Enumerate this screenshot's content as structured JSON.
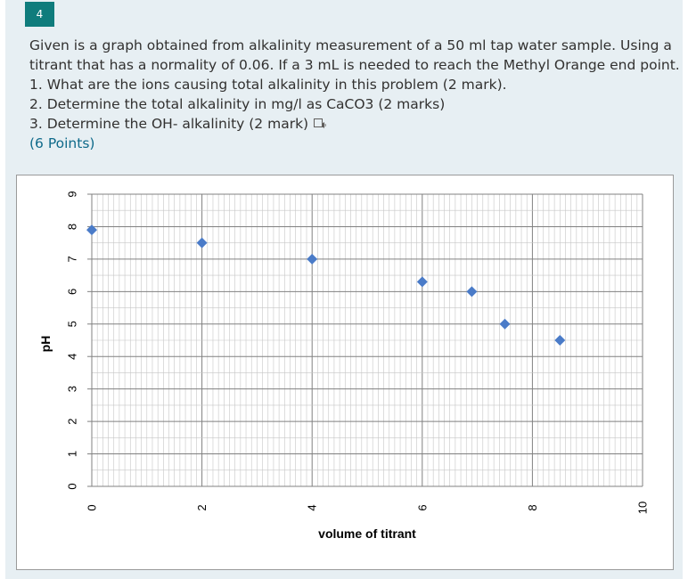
{
  "question": {
    "number": "4",
    "lines": [
      "Given is a graph obtained from alkalinity measurement of a 50 ml tap water sample. Using a",
      "titrant that has a normality of 0.06. If a 3 mL is needed to reach the Methyl Orange end point.",
      "1. What are the ions causing total alkalinity in this problem (2 mark).",
      "2. Determine the total alkalinity in mg/l as CaCO3 (2 marks)",
      "3. Determine the OH- alkalinity (2 mark)"
    ],
    "points": "(6 Points)",
    "icon": "immersive-reader-icon"
  },
  "chart_data": {
    "type": "scatter",
    "xlabel": "volume of titrant",
    "ylabel": "pH",
    "xlim": [
      0,
      10
    ],
    "ylim": [
      0,
      9
    ],
    "xticks": [
      "0",
      "2",
      "4",
      "6",
      "8",
      "10"
    ],
    "yticks": [
      "0",
      "1",
      "2",
      "3",
      "4",
      "5",
      "6",
      "7",
      "8",
      "9"
    ],
    "grid": true,
    "marker": "diamond",
    "marker_color": "#4a7bc8",
    "x": [
      0,
      2,
      4,
      6,
      6.9,
      7.5,
      8.5
    ],
    "y": [
      7.9,
      7.5,
      7.0,
      6.3,
      6.0,
      5.0,
      4.5
    ]
  }
}
